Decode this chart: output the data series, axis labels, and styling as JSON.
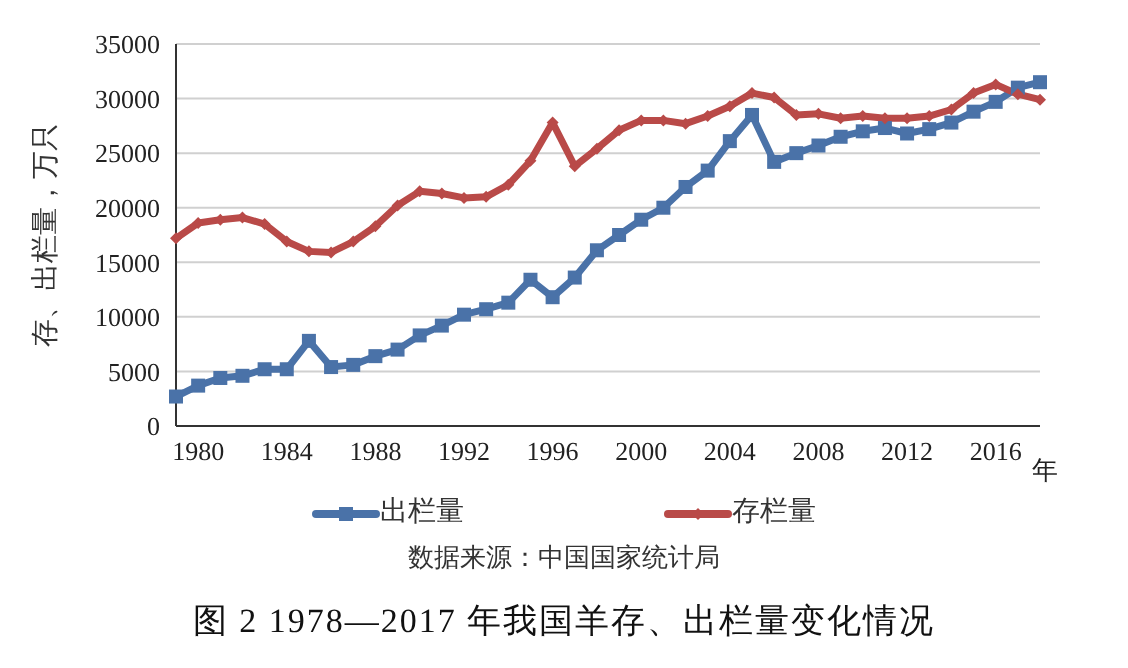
{
  "chart_data": {
    "type": "line",
    "title": "图 2  1978—2017 年我国羊存、出栏量变化情况",
    "xlabel": "年",
    "ylabel": "存、出栏量，万只",
    "annotations": [
      "数据来源：中国国家统计局"
    ],
    "categories": [
      null,
      "1980",
      null,
      null,
      null,
      "1984",
      null,
      null,
      null,
      "1988",
      null,
      null,
      null,
      "1992",
      null,
      null,
      null,
      "1996",
      null,
      null,
      null,
      "2000",
      null,
      null,
      null,
      "2004",
      null,
      null,
      null,
      "2008",
      null,
      null,
      null,
      "2012",
      null,
      null,
      null,
      "2016",
      null,
      null
    ],
    "series": [
      {
        "name": "出栏量",
        "color": "#4a72a8",
        "marker": "square",
        "values": [
          2700,
          3700,
          4400,
          4600,
          5200,
          5200,
          7800,
          5400,
          5600,
          6400,
          7000,
          8300,
          9200,
          10200,
          10700,
          11300,
          13400,
          11800,
          13600,
          16100,
          17500,
          18900,
          20000,
          21900,
          23400,
          26100,
          28500,
          24200,
          25000,
          25700,
          26500,
          27000,
          27300,
          26800,
          27200,
          27800,
          28800,
          29700,
          31000,
          31500
        ]
      },
      {
        "name": "存栏量",
        "color": "#b94a48",
        "marker": "diamond",
        "values": [
          17200,
          18600,
          18900,
          19100,
          18500,
          16900,
          16000,
          15900,
          16900,
          18300,
          20200,
          21500,
          21300,
          20900,
          21000,
          22100,
          24300,
          27800,
          23800,
          25400,
          27100,
          28000,
          28000,
          27700,
          28400,
          29300,
          30500,
          30100,
          28500,
          28600,
          28200,
          28400,
          28200,
          28200,
          28400,
          29000,
          30500,
          31300,
          30400,
          29900
        ]
      }
    ],
    "ylim": [
      0,
      35000
    ],
    "yticks": [
      0,
      5000,
      10000,
      15000,
      20000,
      25000,
      30000,
      35000
    ],
    "grid": "y",
    "legend": "bottom",
    "line_style": "solid"
  }
}
